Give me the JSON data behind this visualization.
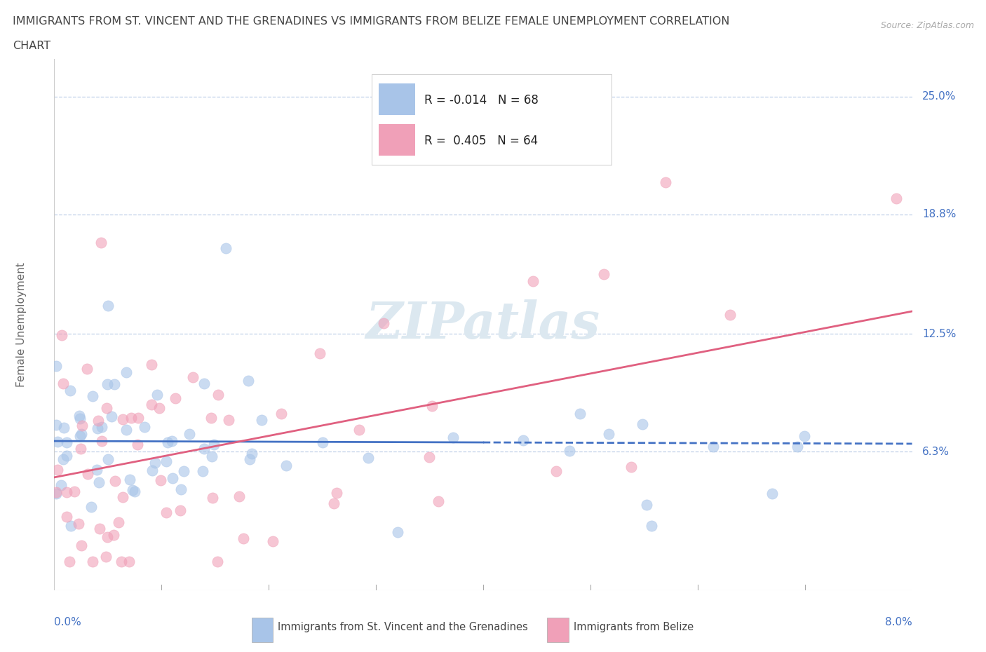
{
  "title_line1": "IMMIGRANTS FROM ST. VINCENT AND THE GRENADINES VS IMMIGRANTS FROM BELIZE FEMALE UNEMPLOYMENT CORRELATION",
  "title_line2": "CHART",
  "source": "Source: ZipAtlas.com",
  "ylabel": "Female Unemployment",
  "ytick_labels": [
    "6.3%",
    "12.5%",
    "18.8%",
    "25.0%"
  ],
  "ytick_values": [
    0.063,
    0.125,
    0.188,
    0.25
  ],
  "xmin": 0.0,
  "xmax": 0.08,
  "ymin": -0.01,
  "ymax": 0.27,
  "color_blue": "#a8c4e8",
  "color_pink": "#f0a0b8",
  "color_trend_blue": "#4472c4",
  "color_trend_pink": "#e06080",
  "color_grid": "#c0d0e8",
  "color_ytick": "#4472c4",
  "watermark_color": "#dce8f0"
}
